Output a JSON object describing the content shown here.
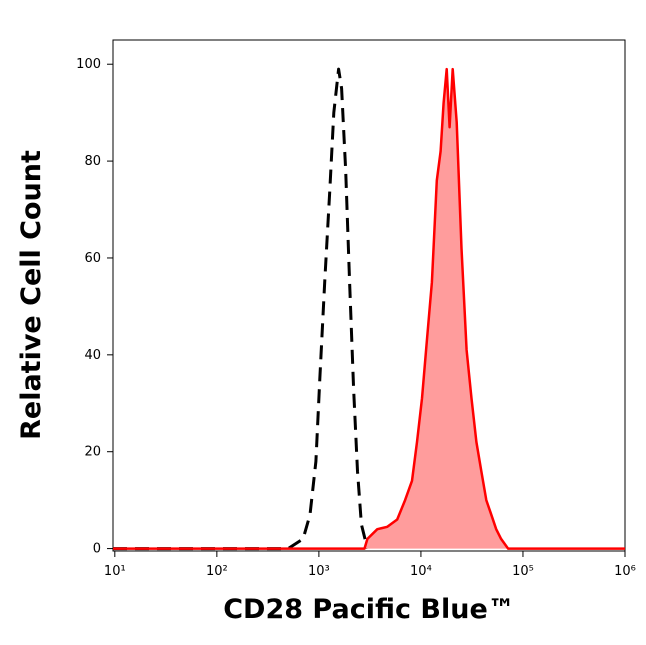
{
  "chart_data": {
    "type": "histogram-overlay",
    "x_label": "CD28 Pacific Blue™",
    "y_label": "Relative Cell Count",
    "xscale": "log",
    "xlim": [
      9.6,
      1000000
    ],
    "ylim": [
      -0.5,
      105
    ],
    "xticks": [
      {
        "value": 10,
        "label": "10¹"
      },
      {
        "value": 100,
        "label": "10²"
      },
      {
        "value": 1000,
        "label": "10³"
      },
      {
        "value": 10000,
        "label": "10⁴"
      },
      {
        "value": 100000,
        "label": "10⁵"
      },
      {
        "value": 1000000,
        "label": "10⁶"
      }
    ],
    "yticks": [
      0,
      20,
      40,
      60,
      80,
      100
    ],
    "series": [
      {
        "color": "#000000",
        "style": "dashed",
        "x": [
          9.6,
          500,
          700,
          818,
          935,
          1020,
          1140,
          1280,
          1400,
          1560,
          1670,
          1830,
          2000,
          2190,
          2390,
          2610,
          2990
        ],
        "values": [
          0,
          0,
          2,
          7,
          18,
          35,
          55,
          74,
          90,
          99,
          95,
          78,
          55,
          33,
          16,
          5,
          0
        ]
      },
      {
        "color": "#ff0000",
        "fill": "#ff9c9c",
        "style": "solid",
        "x": [
          9.6,
          2800,
          2990,
          3740,
          4680,
          5850,
          7000,
          8180,
          9150,
          10240,
          11440,
          12800,
          14300,
          15600,
          16700,
          17900,
          19100,
          20500,
          22400,
          25000,
          28000,
          31300,
          35000,
          39100,
          43700,
          48900,
          54700,
          61100,
          71500,
          1000000
        ],
        "values": [
          0,
          0,
          2,
          4,
          4.5,
          6,
          10,
          14,
          22,
          31,
          43,
          55,
          76,
          82,
          92,
          99,
          87,
          99,
          88,
          62,
          41,
          31,
          22,
          16,
          10,
          7,
          4,
          2,
          0,
          0
        ]
      }
    ]
  }
}
